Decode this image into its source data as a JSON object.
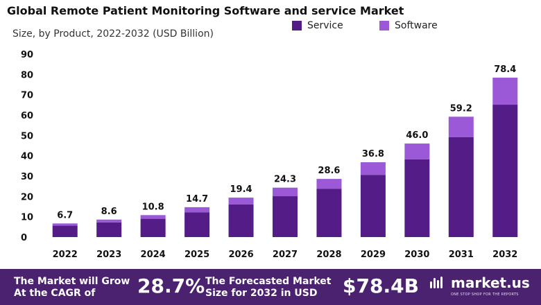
{
  "header": {
    "title": "Global Remote Patient Monitoring Software and service Market",
    "subtitle": "Size, by Product, 2022-2032 (USD Billion)"
  },
  "legend": {
    "service_label": "Service",
    "software_label": "Software"
  },
  "colors": {
    "service": "#541c87",
    "software": "#9b59d8",
    "footer_bg": "#4b2270",
    "axis_text": "#111111"
  },
  "chart_data": {
    "type": "bar",
    "stacked": true,
    "title": "Global Remote Patient Monitoring Software and service Market",
    "subtitle": "Size, by Product, 2022-2032 (USD Billion)",
    "xlabel": "",
    "ylabel": "",
    "ylim": [
      0,
      90
    ],
    "yticks": [
      0,
      10,
      20,
      30,
      40,
      50,
      60,
      70,
      80,
      90
    ],
    "legend_position": "top-right",
    "categories": [
      "2022",
      "2023",
      "2024",
      "2025",
      "2026",
      "2027",
      "2028",
      "2029",
      "2030",
      "2031",
      "2032"
    ],
    "series": [
      {
        "name": "Service",
        "values": [
          5.6,
          7.2,
          9.0,
          12.2,
          16.1,
          20.1,
          23.7,
          30.6,
          38.2,
          49.1,
          65.1
        ]
      },
      {
        "name": "Software",
        "values": [
          1.1,
          1.4,
          1.8,
          2.5,
          3.3,
          4.2,
          4.9,
          6.2,
          7.8,
          10.1,
          13.3
        ]
      }
    ],
    "totals": [
      6.7,
      8.6,
      10.8,
      14.7,
      19.4,
      24.3,
      28.6,
      36.8,
      46.0,
      59.2,
      78.4
    ],
    "total_labels": [
      "6.7",
      "8.6",
      "10.8",
      "14.7",
      "19.4",
      "24.3",
      "28.6",
      "36.8",
      "46.0",
      "59.2",
      "78.4"
    ]
  },
  "footer": {
    "cagr_text": "The Market will Grow At the CAGR of",
    "cagr_value": "28.7%",
    "forecast_text": "The Forecasted Market Size for 2032 in USD",
    "forecast_value": "$78.4B",
    "brand_name": "market.us",
    "brand_tagline": "ONE STOP SHOP FOR THE REPORTS"
  }
}
